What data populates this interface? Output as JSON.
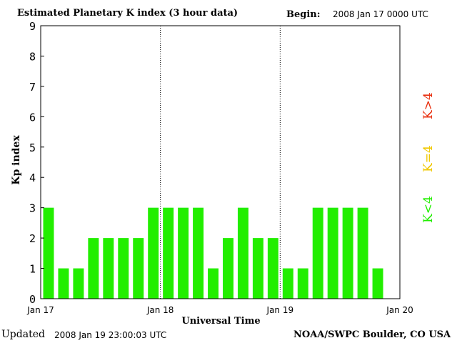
{
  "header": {
    "title": "Estimated Planetary K index (3 hour data)",
    "begin_label": "Begin:",
    "begin_value": "2008 Jan 17 0000 UTC"
  },
  "footer": {
    "updated_label": "Updated",
    "updated_value": "2008 Jan 19 23:00:03 UTC",
    "source": "NOAA/SWPC Boulder, CO USA"
  },
  "legend": [
    {
      "label": "K<4",
      "color": "#22ee00"
    },
    {
      "label": "K=4",
      "color": "#f0c800"
    },
    {
      "label": "K>4",
      "color": "#e83010"
    }
  ],
  "chart_data": {
    "type": "bar",
    "title": "Estimated Planetary K index (3 hour data)",
    "xlabel": "Universal Time",
    "ylabel": "Kp index",
    "ylim": [
      0,
      9
    ],
    "yticks": [
      0,
      1,
      2,
      3,
      4,
      5,
      6,
      7,
      8,
      9
    ],
    "xticks": [
      "Jan 17",
      "Jan 18",
      "Jan 19",
      "Jan 20"
    ],
    "interval_hours": 3,
    "grid": false,
    "day_separators": true,
    "bar_color": "#22ee00",
    "values": [
      3,
      1,
      1,
      2,
      2,
      2,
      2,
      3,
      3,
      3,
      3,
      1,
      2,
      3,
      2,
      2,
      1,
      1,
      3,
      3,
      3,
      3,
      1
    ]
  }
}
